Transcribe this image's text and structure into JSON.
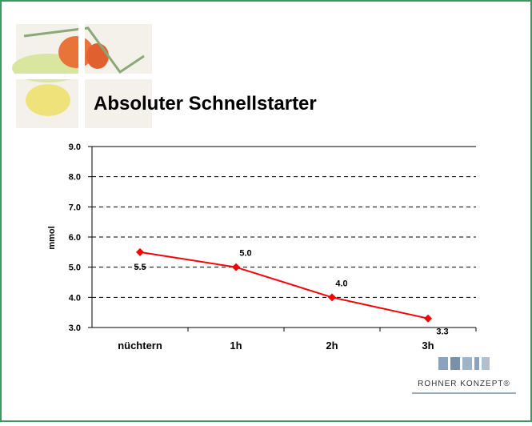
{
  "chart_data": {
    "type": "line",
    "title": "Absoluter Schnellstarter",
    "y_label": "mmol",
    "categories": [
      "nüchtern",
      "1h",
      "2h",
      "3h"
    ],
    "series": [
      {
        "name": "mmol",
        "color": "#ff0000",
        "values": [
          5.5,
          5.0,
          4.0,
          3.3
        ],
        "value_labels": [
          "5.5",
          "5.0",
          "4.0",
          "3.3"
        ]
      }
    ],
    "ylim": [
      3,
      9
    ],
    "yticks": [
      {
        "value": 3,
        "label": "3.0"
      },
      {
        "value": 4,
        "label": "4.0"
      },
      {
        "value": 5,
        "label": "5.0"
      },
      {
        "value": 6,
        "label": "6.0"
      },
      {
        "value": 7,
        "label": "7.0"
      },
      {
        "value": 8,
        "label": "8.0"
      },
      {
        "value": 9,
        "label": "9.0"
      }
    ],
    "grid": true
  },
  "logo": {
    "text": "ROHNER KONZEPT®"
  }
}
